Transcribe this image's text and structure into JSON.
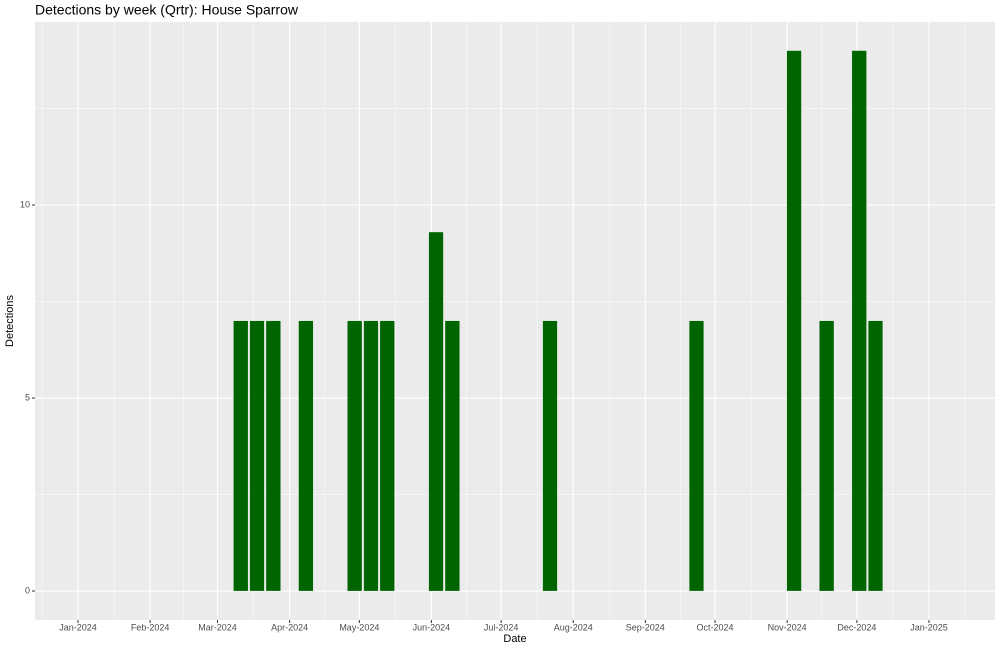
{
  "chart_data": {
    "type": "bar",
    "title": "Detections by week (Qrtr): House Sparrow",
    "x_label": "Date",
    "y_label": "Detections",
    "x": [
      70,
      77,
      84,
      98,
      119,
      126,
      133,
      154,
      161,
      203,
      266,
      308,
      322,
      336,
      343
    ],
    "values": [
      7,
      7,
      7,
      7,
      7,
      7,
      7,
      9.3,
      7,
      7,
      7,
      14,
      7,
      14,
      7
    ],
    "bar_width": 6.3,
    "color": "#006400",
    "xlim": [
      -18.5,
      394.4
    ],
    "xticks": [
      {
        "value": 0,
        "label": "Jan-2024"
      },
      {
        "value": 31,
        "label": "Feb-2024"
      },
      {
        "value": 60,
        "label": "Mar-2024"
      },
      {
        "value": 91,
        "label": "Apr-2024"
      },
      {
        "value": 121,
        "label": "May-2024"
      },
      {
        "value": 152,
        "label": "Jun-2024"
      },
      {
        "value": 182,
        "label": "Jul-2024"
      },
      {
        "value": 213,
        "label": "Aug-2024"
      },
      {
        "value": 244,
        "label": "Sep-2024"
      },
      {
        "value": 274,
        "label": "Oct-2024"
      },
      {
        "value": 305,
        "label": "Nov-2024"
      },
      {
        "value": 335,
        "label": "Dec-2024"
      },
      {
        "value": 366,
        "label": "Jan-2025"
      }
    ],
    "ylim": [
      -0.75,
      14.74
    ],
    "yticks": [
      0,
      5,
      10
    ],
    "grid": true
  }
}
